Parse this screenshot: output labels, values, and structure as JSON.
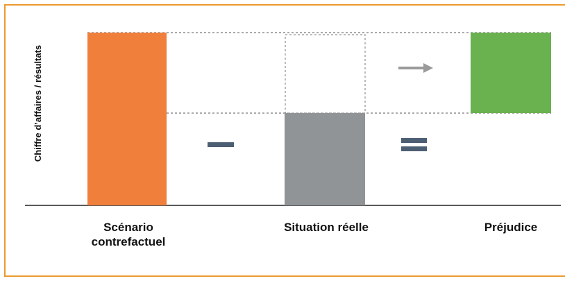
{
  "diagram": {
    "y_axis_label": "Chiffre d’affaires / résultats",
    "categories": {
      "counterfactual_line1": "Scénario",
      "counterfactual_line2": "contrefactuel",
      "actual": "Situation réelle",
      "damage": "Préjudice"
    },
    "colors": {
      "frame": "#ed9a2e",
      "counterfactual_bar": "#f07f3c",
      "actual_bar": "#919497",
      "damage_bar": "#6ab150",
      "operator": "#4c5e72",
      "arrow": "#9a9a9a",
      "guide_line": "#555555",
      "axis": "#222222"
    },
    "operators": {
      "minus": "minus-sign",
      "equals": "equals-sign",
      "arrow": "arrow-right-icon"
    }
  }
}
